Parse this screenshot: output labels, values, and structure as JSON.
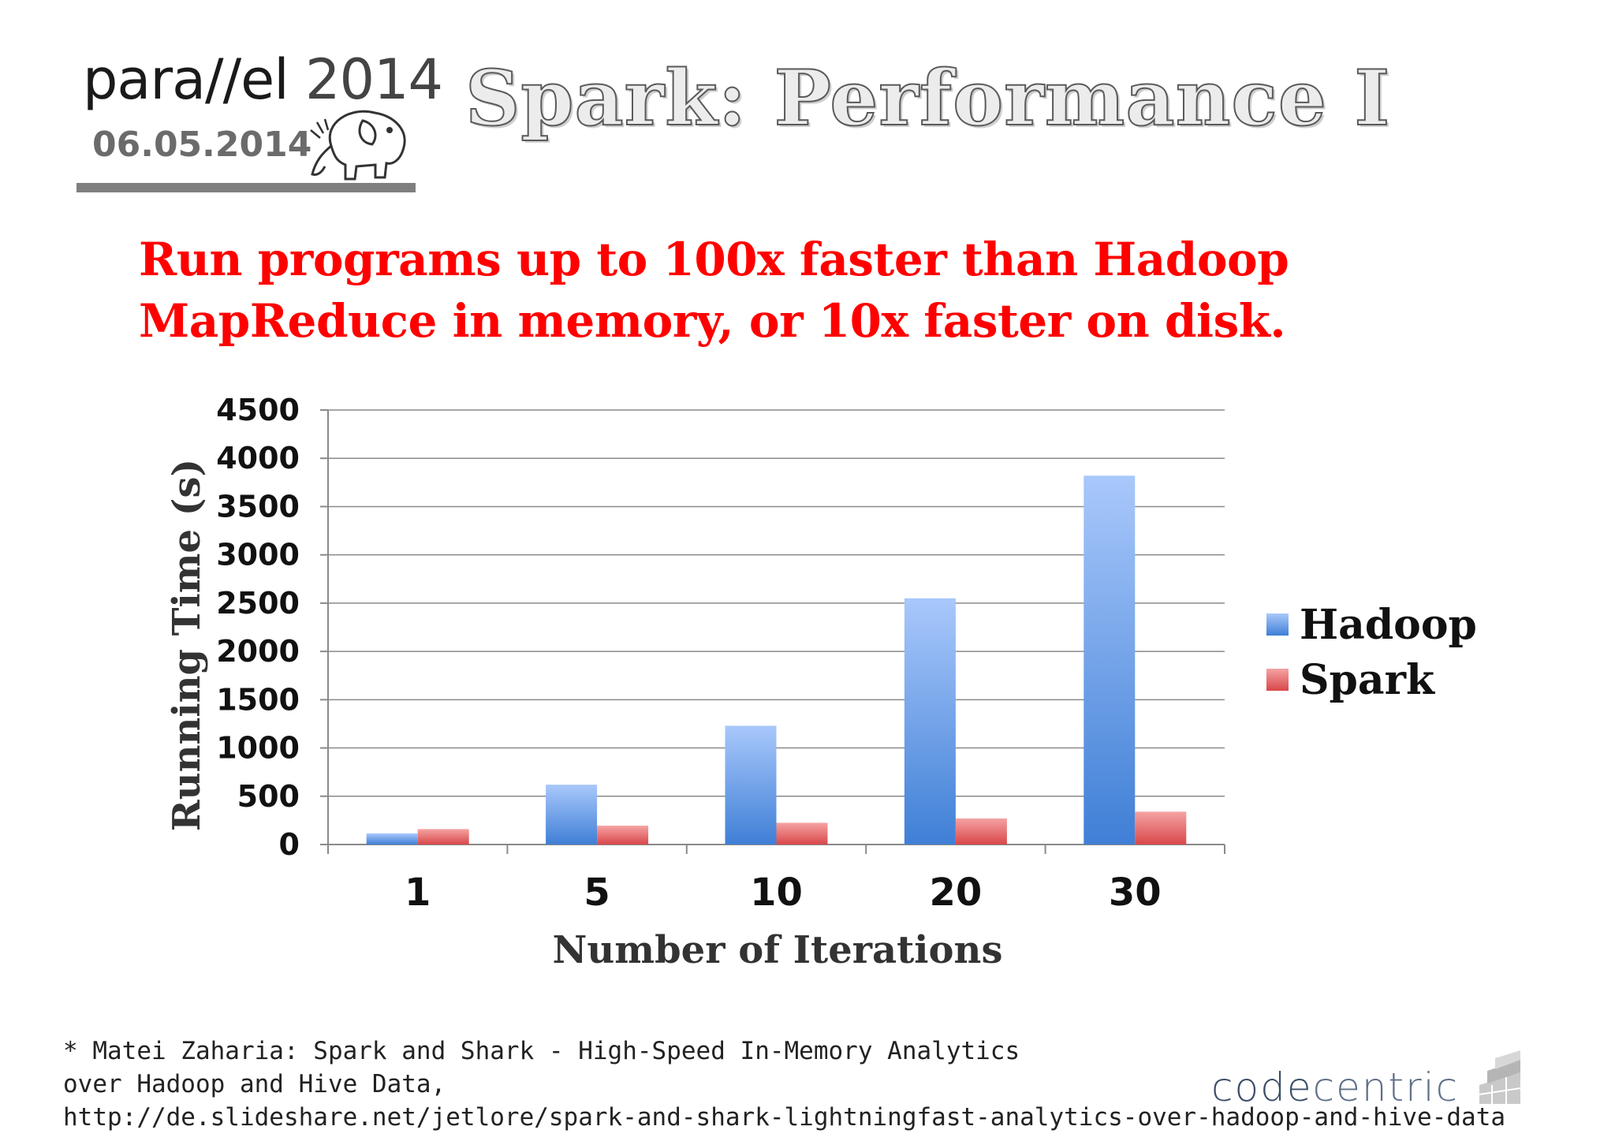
{
  "header": {
    "logo_name": "para//el",
    "logo_year": "2014",
    "date": "06.05.2014",
    "title": "Spark: Performance I"
  },
  "headline": {
    "line1": "Run programs up to 100x faster than Hadoop",
    "line2": "MapReduce in memory, or 10x faster on disk."
  },
  "chart_data": {
    "type": "bar",
    "categories": [
      "1",
      "5",
      "10",
      "20",
      "30"
    ],
    "series": [
      {
        "name": "Hadoop",
        "values": [
          115,
          620,
          1230,
          2550,
          3820
        ],
        "color": "#5b93e6"
      },
      {
        "name": "Spark",
        "values": [
          160,
          195,
          225,
          270,
          340
        ],
        "color": "#e8676a"
      }
    ],
    "xlabel": "Number of Iterations",
    "ylabel": "Running Time (s)",
    "ylim": [
      0,
      4500
    ],
    "yticks": [
      0,
      500,
      1000,
      1500,
      2000,
      2500,
      3000,
      3500,
      4000,
      4500
    ],
    "grid": true,
    "legend_position": "right"
  },
  "footnote": {
    "line1": "* Matei Zaharia: Spark and Shark - High-Speed In-Memory Analytics",
    "line2": "over Hadoop and Hive Data,",
    "line3": "http://de.slideshare.net/jetlore/spark-and-shark-lightningfast-analytics-over-hadoop-and-hive-data"
  },
  "brand": {
    "part1": "code",
    "part2": "centric"
  }
}
